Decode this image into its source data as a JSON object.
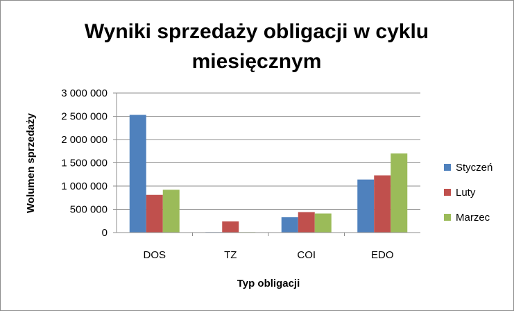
{
  "chart_data": {
    "type": "bar",
    "title_lines": [
      "Wyniki sprzedaży obligacji w cyklu",
      "miesięcznym"
    ],
    "xlabel": "Typ obligacji",
    "ylabel": "Wolumen sprzedaży",
    "categories": [
      "DOS",
      "TZ",
      "COI",
      "EDO"
    ],
    "series": [
      {
        "name": "Styczeń",
        "color": "#4F81BD",
        "values": [
          2530000,
          10000,
          330000,
          1140000
        ]
      },
      {
        "name": "Luty",
        "color": "#C0504D",
        "values": [
          810000,
          240000,
          440000,
          1230000
        ]
      },
      {
        "name": "Marzec",
        "color": "#9BBB59",
        "values": [
          920000,
          10000,
          410000,
          1700000
        ]
      }
    ],
    "ylim": [
      0,
      3000000
    ],
    "yticks": [
      0,
      500000,
      1000000,
      1500000,
      2000000,
      2500000,
      3000000
    ],
    "ytick_labels": [
      "0",
      "500 000",
      "1 000 000",
      "1 500 000",
      "2 000 000",
      "2 500 000",
      "3 000 000"
    ],
    "grid": true,
    "legend_position": "right"
  }
}
